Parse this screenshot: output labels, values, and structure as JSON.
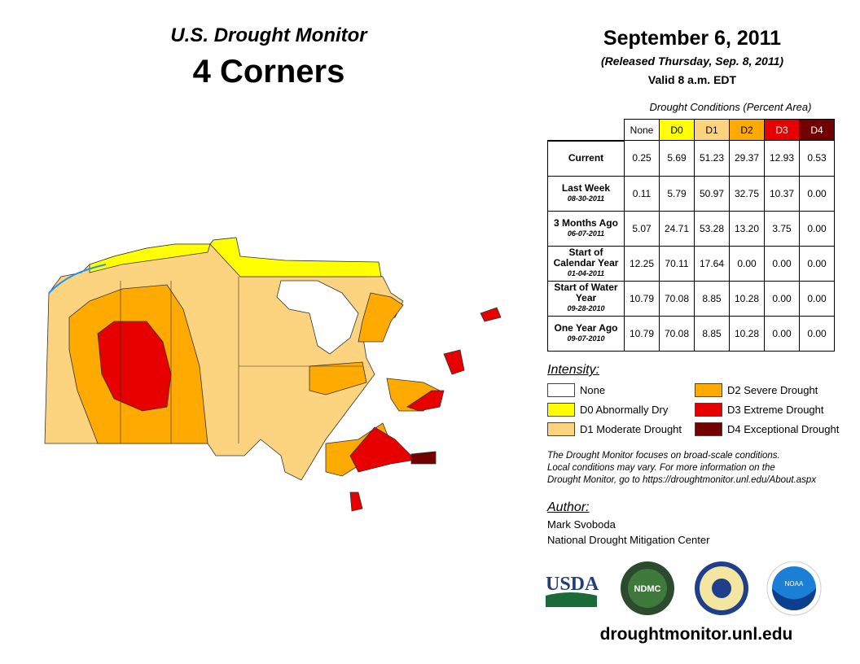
{
  "header": {
    "title": "U.S. Drought Monitor",
    "region": "4 Corners",
    "date": "September 6, 2011",
    "released": "(Released Thursday, Sep. 8, 2011)",
    "valid": "Valid 8 a.m. EDT"
  },
  "table": {
    "caption": "Drought Conditions (Percent Area)",
    "columns": [
      "None",
      "D0",
      "D1",
      "D2",
      "D3",
      "D4"
    ],
    "rows": [
      {
        "label": "Current",
        "date": "",
        "values": [
          "0.25",
          "5.69",
          "51.23",
          "29.37",
          "12.93",
          "0.53"
        ]
      },
      {
        "label": "Last Week",
        "date": "08-30-2011",
        "values": [
          "0.11",
          "5.79",
          "50.97",
          "32.75",
          "10.37",
          "0.00"
        ]
      },
      {
        "label": "3 Months Ago",
        "date": "06-07-2011",
        "values": [
          "5.07",
          "24.71",
          "53.28",
          "13.20",
          "3.75",
          "0.00"
        ]
      },
      {
        "label": "Start of Calendar Year",
        "date": "01-04-2011",
        "values": [
          "12.25",
          "70.11",
          "17.64",
          "0.00",
          "0.00",
          "0.00"
        ]
      },
      {
        "label": "Start of Water Year",
        "date": "09-28-2010",
        "values": [
          "10.79",
          "70.08",
          "8.85",
          "10.28",
          "0.00",
          "0.00"
        ]
      },
      {
        "label": "One Year Ago",
        "date": "09-07-2010",
        "values": [
          "10.79",
          "70.08",
          "8.85",
          "10.28",
          "0.00",
          "0.00"
        ]
      }
    ]
  },
  "legend": {
    "title": "Intensity:",
    "items": [
      {
        "label": "None",
        "color": "#ffffff"
      },
      {
        "label": "D0 Abnormally Dry",
        "color": "#ffff00"
      },
      {
        "label": "D1 Moderate Drought",
        "color": "#fcd37f"
      },
      {
        "label": "D2 Severe Drought",
        "color": "#ffaa00"
      },
      {
        "label": "D3 Extreme Drought",
        "color": "#e60000"
      },
      {
        "label": "D4 Exceptional Drought",
        "color": "#730000"
      }
    ]
  },
  "note": [
    "The Drought Monitor focuses on broad-scale conditions.",
    "Local conditions may vary. For more information on the",
    "Drought Monitor, go to https://droughtmonitor.unl.edu/About.aspx"
  ],
  "author": {
    "title": "Author:",
    "name": "Mark Svoboda",
    "org": "National Drought Mitigation Center"
  },
  "logos": [
    "USDA",
    "NDMC",
    "NOAA"
  ],
  "footer_url": "droughtmonitor.unl.edu"
}
